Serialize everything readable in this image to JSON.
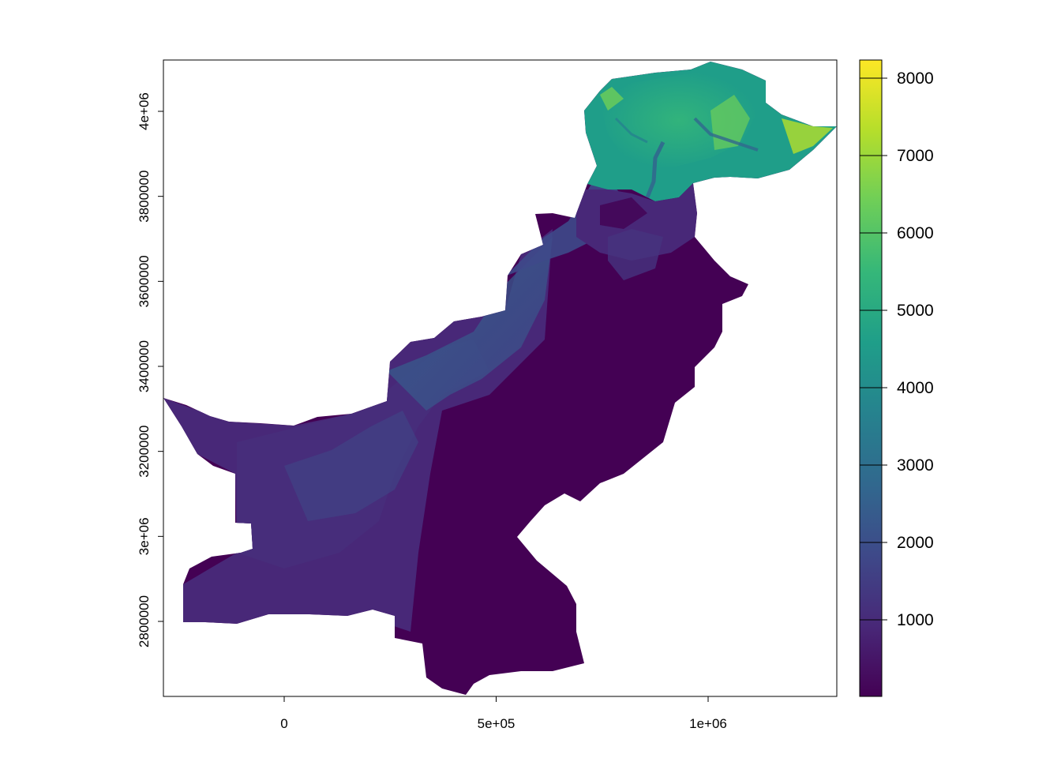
{
  "x_axis": {
    "ticks": [
      {
        "value": 0,
        "label": "0"
      },
      {
        "value": 500000,
        "label": "5e+05"
      },
      {
        "value": 1000000,
        "label": "1e+06"
      }
    ]
  },
  "y_axis": {
    "ticks": [
      {
        "value": 2800000,
        "label": "2800000"
      },
      {
        "value": 3000000,
        "label": "3e+06"
      },
      {
        "value": 3200000,
        "label": "3200000"
      },
      {
        "value": 3400000,
        "label": "3400000"
      },
      {
        "value": 3600000,
        "label": "3600000"
      },
      {
        "value": 3800000,
        "label": "3800000"
      },
      {
        "value": 4000000,
        "label": "4e+06"
      }
    ]
  },
  "legend": {
    "type": "continuous colorbar",
    "palette": "viridis",
    "colors": [
      "#440154",
      "#482878",
      "#3e4989",
      "#31688e",
      "#26828e",
      "#1f9e89",
      "#35b779",
      "#6ece58",
      "#b5de2b",
      "#fde725"
    ],
    "range": [
      0,
      8200
    ],
    "ticks": [
      {
        "value": 1000,
        "label": "1000"
      },
      {
        "value": 2000,
        "label": "2000"
      },
      {
        "value": 3000,
        "label": "3000"
      },
      {
        "value": 4000,
        "label": "4000"
      },
      {
        "value": 5000,
        "label": "5000"
      },
      {
        "value": 6000,
        "label": "6000"
      },
      {
        "value": 7000,
        "label": "7000"
      },
      {
        "value": 8000,
        "label": "8000"
      }
    ]
  },
  "map": {
    "region": "Pakistan",
    "fill": "elevation raster",
    "background": "#ffffff"
  }
}
